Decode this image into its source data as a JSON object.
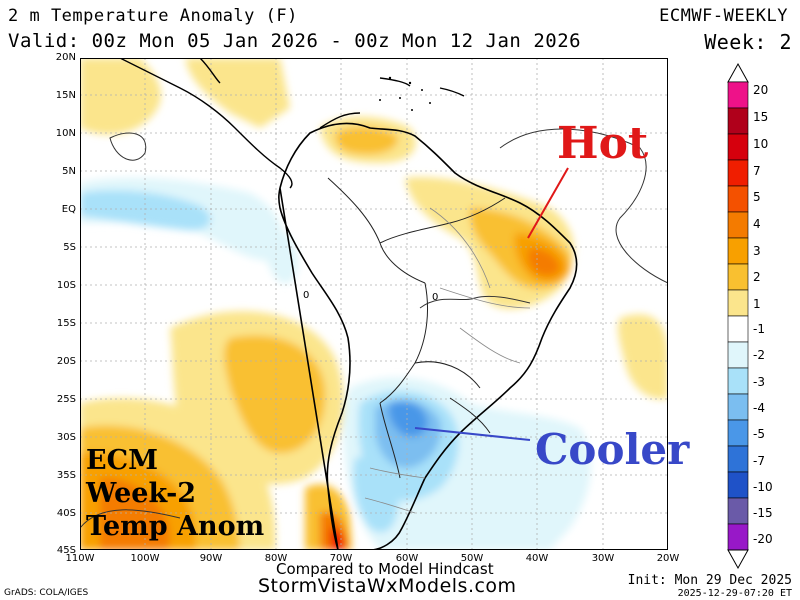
{
  "header": {
    "title": "2 m Temperature Anomaly (F)",
    "valid": "Valid: 00z Mon 05 Jan 2026 - 00z Mon 12 Jan 2026",
    "model": "ECMWF-WEEKLY",
    "week": "Week: 2"
  },
  "axes": {
    "lat_labels": [
      "20N",
      "15N",
      "10N",
      "5N",
      "EQ",
      "5S",
      "10S",
      "15S",
      "20S",
      "25S",
      "30S",
      "35S",
      "40S",
      "45S"
    ],
    "lon_labels": [
      "110W",
      "100W",
      "90W",
      "80W",
      "70W",
      "60W",
      "50W",
      "40W",
      "30W",
      "20W"
    ]
  },
  "colorbar": {
    "labels": [
      "20",
      "15",
      "10",
      "7",
      "5",
      "4",
      "3",
      "2",
      "1",
      "-1",
      "-2",
      "-3",
      "-4",
      "-5",
      "-7",
      "-10",
      "-15",
      "-20"
    ],
    "colors": [
      "#ee1289",
      "#b0001b",
      "#d6000d",
      "#f01e00",
      "#f45100",
      "#f47b00",
      "#f8a000",
      "#f9c030",
      "#fbe58c",
      "#ffffff",
      "#e0f6fb",
      "#a9e1f9",
      "#7bbef0",
      "#4a97e8",
      "#2e73d8",
      "#1f52c8",
      "#6a5aa8",
      "#9818c8"
    ],
    "zero_band_color": "#ffffff"
  },
  "annotations": {
    "hot": "Hot",
    "cooler": "Cooler",
    "box_line1": "ECM",
    "box_line2": "Week-2",
    "box_line3": "Temp Anom",
    "hot_color": "#e01818",
    "cooler_color": "#3848c8"
  },
  "contour_labels": {
    "zero1": "0",
    "zero2": "0"
  },
  "footer": {
    "compared": "Compared to Model Hindcast",
    "site": "StormVistaWxModels.com",
    "grads": "GrADS: COLA/IGES",
    "init": "Init: Mon 29 Dec 2025",
    "timestamp": "2025-12-29-07:20 ET"
  }
}
